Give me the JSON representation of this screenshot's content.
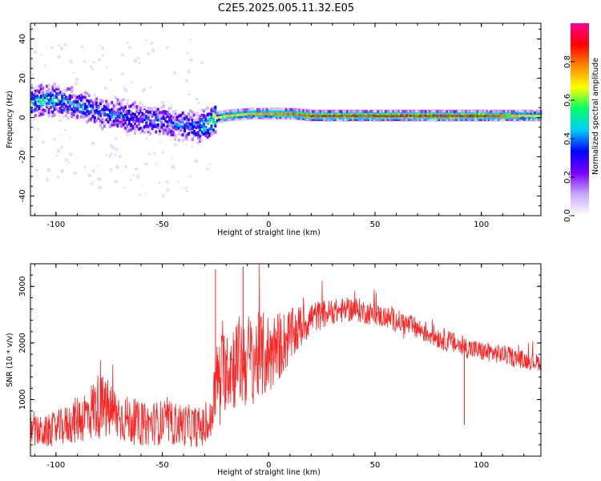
{
  "figure": {
    "title": "C2E5.2025.005.11.32.E05"
  },
  "chart_data": [
    {
      "type": "heatmap",
      "xlabel": "Height of straight line (km)",
      "ylabel": "Frequency (Hz)",
      "xlim": [
        -112,
        128
      ],
      "ylim": [
        -50,
        48
      ],
      "xticks": [
        -100,
        -50,
        0,
        50,
        100
      ],
      "yticks": [
        -40,
        -20,
        0,
        20,
        40
      ],
      "xtick_labels": [
        "-100",
        "-50",
        "0",
        "50",
        "100"
      ],
      "ytick_labels": [
        "-40",
        "-20",
        "0",
        "20",
        "40"
      ],
      "colorbar": {
        "label": "Normalized spectral amplitude",
        "range": [
          0,
          1
        ],
        "ticks": [
          0,
          0.2,
          0.4,
          0.6,
          0.8
        ],
        "tick_labels": [
          "0.0",
          "0.2",
          "0.4",
          "0.6",
          "0.8"
        ],
        "colormap": [
          "#ffffff",
          "#c9a8ff",
          "#7a00ff",
          "#0000ff",
          "#00ccff",
          "#00ff66",
          "#ffff00",
          "#ff8800",
          "#ff0000",
          "#ff0099"
        ]
      },
      "ridge": {
        "x": [
          -112,
          -100,
          -90,
          -80,
          -70,
          -60,
          -50,
          -40,
          -33,
          -28,
          -25,
          -20,
          -10,
          0,
          10,
          20,
          50,
          100,
          128
        ],
        "frequency": [
          8,
          9,
          6,
          3,
          1,
          -1,
          -2,
          -4,
          -5,
          -3,
          0,
          1,
          2,
          2,
          2,
          1,
          1,
          1,
          1
        ],
        "amplitude": [
          0.5,
          0.45,
          0.4,
          0.35,
          0.35,
          0.35,
          0.35,
          0.35,
          0.4,
          0.6,
          0.7,
          0.75,
          0.75,
          0.8,
          0.85,
          0.9,
          0.9,
          0.9,
          0.7
        ]
      }
    },
    {
      "type": "line",
      "xlabel": "Height of straight line (km)",
      "ylabel": "SNR (10 * v/v)",
      "xlim": [
        -112,
        128
      ],
      "ylim": [
        0,
        3400
      ],
      "xticks": [
        -100,
        -50,
        0,
        50,
        100
      ],
      "yticks": [
        1000,
        2000,
        3000
      ],
      "xtick_labels": [
        "-100",
        "-50",
        "0",
        "50",
        "100"
      ],
      "ytick_labels": [
        "1000",
        "2000",
        "3000"
      ],
      "color": "#ff2222",
      "series": [
        {
          "x": [
            -112,
            -105,
            -95,
            -85,
            -80,
            -75,
            -70,
            -60,
            -50,
            -40,
            -30,
            -27,
            -25,
            -20,
            -15,
            -10,
            -5,
            0,
            10,
            20,
            30,
            40,
            50,
            60,
            70,
            80,
            90,
            100,
            110,
            120,
            128
          ],
          "mean": [
            450,
            420,
            550,
            750,
            900,
            800,
            700,
            550,
            600,
            550,
            500,
            600,
            1300,
            1600,
            1650,
            1700,
            1750,
            1800,
            2100,
            2450,
            2550,
            2600,
            2500,
            2400,
            2250,
            2100,
            1950,
            1850,
            1800,
            1700,
            1650
          ],
          "spread": [
            280,
            280,
            350,
            500,
            600,
            550,
            450,
            380,
            400,
            380,
            350,
            400,
            650,
            800,
            850,
            850,
            800,
            750,
            500,
            300,
            220,
            220,
            200,
            200,
            200,
            200,
            190,
            180,
            170,
            160,
            150
          ]
        }
      ],
      "spikes": {
        "x": [
          -25,
          -12,
          92
        ],
        "y": [
          3300,
          3350,
          550
        ]
      }
    }
  ]
}
